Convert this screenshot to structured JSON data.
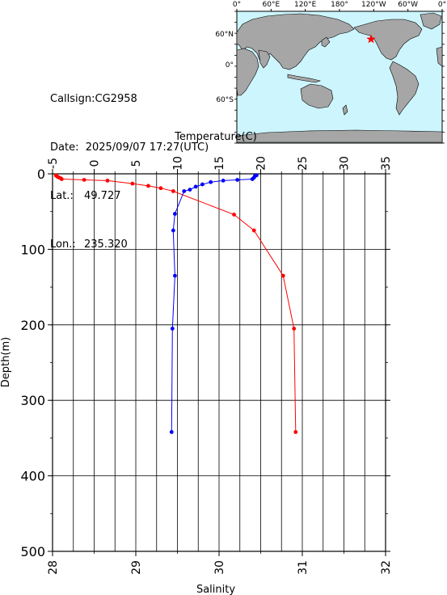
{
  "info": {
    "callsign": "Callsign:CG2958",
    "date": "Date:  2025/09/07 17:27(UTC)",
    "lat_label": "Lat.:",
    "lat_value": "49.727",
    "lon_label": "Lon.:",
    "lon_value": "235.320"
  },
  "map": {
    "top_ticks": [
      "0°",
      "60°E",
      "120°E",
      "180°",
      "120°W",
      "60°W",
      "0°"
    ],
    "left_ticks": [
      "60°N",
      "0°",
      "60°S"
    ],
    "ocean_color": "#cdf5fd",
    "land_color": "#a6a6a6",
    "marker_icon": "star-icon",
    "marker_color": "#ff0000"
  },
  "chart_data": {
    "type": "line",
    "title": "",
    "x_top_label": "Temperature(C)",
    "x_bottom_label": "Salinity",
    "ylabel": "Depth(m)",
    "temperature_ticks": [
      "-5",
      "0",
      "5",
      "10",
      "15",
      "20",
      "25",
      "30",
      "35"
    ],
    "salinity_ticks": [
      "28",
      "29",
      "30",
      "31",
      "32"
    ],
    "depth_ticks": [
      "0",
      "100",
      "200",
      "300",
      "400",
      "500"
    ],
    "temperature_range": [
      -5,
      35
    ],
    "salinity_range": [
      28,
      32
    ],
    "depth_range": [
      0,
      500
    ],
    "grid": true,
    "series": [
      {
        "key": "temperature",
        "color": "#ff0000",
        "axis": "temperature",
        "points": [
          [
            -4.6,
            2
          ],
          [
            -4.5,
            3
          ],
          [
            -4.4,
            4
          ],
          [
            -4.2,
            5
          ],
          [
            -4.0,
            6
          ],
          [
            -3.9,
            7
          ],
          [
            -1.2,
            8
          ],
          [
            1.6,
            9
          ],
          [
            4.6,
            13
          ],
          [
            6.5,
            16
          ],
          [
            8.0,
            19
          ],
          [
            9.5,
            23
          ],
          [
            16.8,
            54
          ],
          [
            19.2,
            75
          ],
          [
            22.7,
            135
          ],
          [
            24.0,
            205
          ],
          [
            24.2,
            342
          ]
        ]
      },
      {
        "key": "salinity",
        "color": "#0000ff",
        "axis": "salinity",
        "points": [
          [
            30.45,
            2
          ],
          [
            30.43,
            3
          ],
          [
            30.42,
            5
          ],
          [
            30.4,
            7
          ],
          [
            30.22,
            8
          ],
          [
            30.05,
            9
          ],
          [
            29.9,
            11
          ],
          [
            29.8,
            14
          ],
          [
            29.72,
            17
          ],
          [
            29.65,
            21
          ],
          [
            29.58,
            23
          ],
          [
            29.47,
            53
          ],
          [
            29.45,
            75
          ],
          [
            29.47,
            135
          ],
          [
            29.44,
            205
          ],
          [
            29.43,
            342
          ]
        ]
      }
    ]
  }
}
